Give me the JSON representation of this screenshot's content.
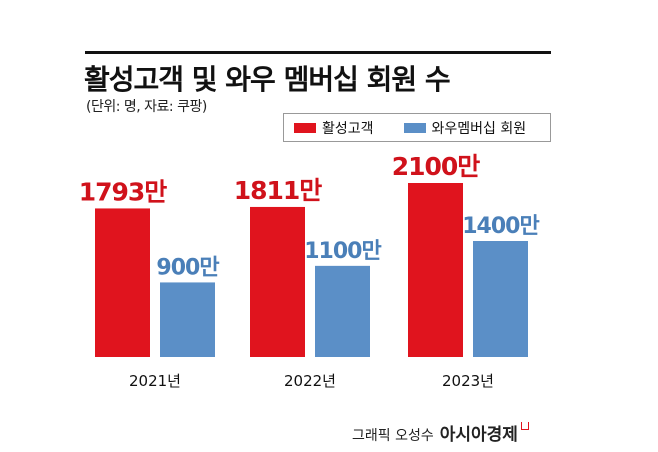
{
  "chart_data": {
    "type": "bar",
    "title": "활성고객 및 와우 멤버십 회원 수",
    "subtitle": "(단위: 명, 자료: 쿠팡)",
    "categories": [
      "2021년",
      "2022년",
      "2023년"
    ],
    "series": [
      {
        "name": "활성고객",
        "values": [
          1793,
          1811,
          2100
        ],
        "labels": [
          "1793만",
          "1811만",
          "2100만"
        ],
        "color": "#e0141e",
        "label_color": "#d0121b"
      },
      {
        "name": "와우멤버십 회원",
        "values": [
          900,
          1100,
          1400
        ],
        "labels": [
          "900만",
          "1100만",
          "1400만"
        ],
        "color": "#5b8fc7",
        "label_color": "#4a7fb8"
      }
    ],
    "unit": "만",
    "ylim": [
      0,
      2100
    ],
    "grid": false,
    "legend": "top-right"
  },
  "credit": {
    "text": "그래픽 오성수",
    "brand": "아시아경제"
  }
}
